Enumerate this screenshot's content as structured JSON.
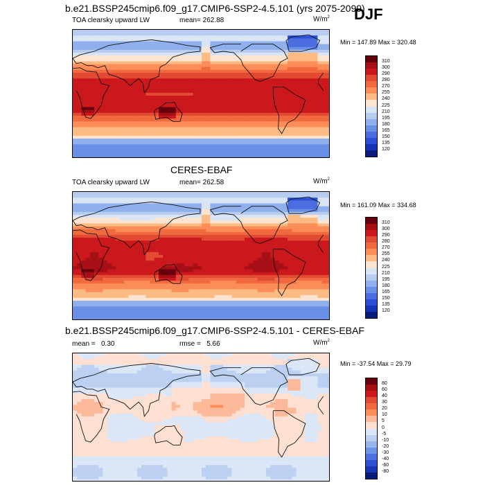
{
  "season": "DJF",
  "panels": [
    {
      "title": "b.e21.BSSP245cmip6.f09_g17.CMIP6-SSP2-4.5.101 (yrs 2075-2099)",
      "left_label": "TOA clearsky upward LW",
      "mean_label": "mean=",
      "mean_value": "262.88",
      "units": "W/m",
      "units_exp": "2",
      "minmax": "Min = 147.89 Max = 320.48",
      "colorbar_labels": [
        "310",
        "300",
        "290",
        "280",
        "270",
        "255",
        "240",
        "225",
        "210",
        "195",
        "180",
        "165",
        "150",
        "135",
        "120"
      ],
      "colorbar_colors": [
        "#67000d",
        "#a50f15",
        "#cb181d",
        "#e34a33",
        "#f16a3f",
        "#fc8d59",
        "#fdbb84",
        "#fde4d0",
        "#d9e4f5",
        "#b8ccf0",
        "#8fb0ec",
        "#6a8fe6",
        "#4a6ee0",
        "#2d4fd6",
        "#1633b8",
        "#0a1a7a"
      ],
      "field": "abs"
    },
    {
      "title": "CERES-EBAF",
      "left_label": "TOA clearsky upward LW",
      "mean_label": "mean=",
      "mean_value": "262.58",
      "units": "W/m",
      "units_exp": "2",
      "minmax": "Min = 161.09 Max = 334.68",
      "colorbar_labels": [
        "310",
        "300",
        "290",
        "280",
        "270",
        "255",
        "240",
        "225",
        "210",
        "195",
        "180",
        "165",
        "150",
        "135",
        "120"
      ],
      "colorbar_colors": [
        "#67000d",
        "#a50f15",
        "#cb181d",
        "#e34a33",
        "#f16a3f",
        "#fc8d59",
        "#fdbb84",
        "#fde4d0",
        "#d9e4f5",
        "#b8ccf0",
        "#8fb0ec",
        "#6a8fe6",
        "#4a6ee0",
        "#2d4fd6",
        "#1633b8",
        "#0a1a7a"
      ],
      "field": "abs"
    },
    {
      "title": "b.e21.BSSP245cmip6.f09_g17.CMIP6-SSP2-4.5.101 - CERES-EBAF",
      "mean_label": "mean =",
      "mean_value": "0.30",
      "rmse_label": "rmse =",
      "rmse_value": "5.66",
      "units": "W/m",
      "units_exp": "2",
      "minmax": "Min = -37.54 Max =  29.79",
      "colorbar_labels": [
        "80",
        "60",
        "40",
        "30",
        "20",
        "10",
        "5",
        "0",
        "-5",
        "-10",
        "-20",
        "-30",
        "-40",
        "-60",
        "-80"
      ],
      "colorbar_colors": [
        "#67000d",
        "#a50f15",
        "#cb181d",
        "#e34a33",
        "#f16a3f",
        "#fc8d59",
        "#fcb99a",
        "#fde0d2",
        "#dbe6f7",
        "#bcd0f2",
        "#97b5ec",
        "#6f93e5",
        "#4c70de",
        "#2e50d2",
        "#1a35b5",
        "#0a1a7a"
      ],
      "field": "diff"
    }
  ],
  "chart_data": [
    {
      "type": "heatmap",
      "title": "b.e21.BSSP245cmip6.f09_g17.CMIP6-SSP2-4.5.101 (yrs 2075-2099)",
      "variable": "TOA clearsky upward LW",
      "units": "W/m2",
      "mean": 262.88,
      "min": 147.89,
      "max": 320.48,
      "levels": [
        120,
        135,
        150,
        165,
        180,
        195,
        210,
        225,
        240,
        255,
        270,
        280,
        290,
        300,
        310
      ]
    },
    {
      "type": "heatmap",
      "title": "CERES-EBAF",
      "variable": "TOA clearsky upward LW",
      "units": "W/m2",
      "mean": 262.58,
      "min": 161.09,
      "max": 334.68,
      "levels": [
        120,
        135,
        150,
        165,
        180,
        195,
        210,
        225,
        240,
        255,
        270,
        280,
        290,
        300,
        310
      ]
    },
    {
      "type": "heatmap",
      "title": "b.e21.BSSP245cmip6.f09_g17.CMIP6-SSP2-4.5.101 - CERES-EBAF",
      "units": "W/m2",
      "mean": 0.3,
      "rmse": 5.66,
      "min": -37.54,
      "max": 29.79,
      "levels": [
        -80,
        -60,
        -40,
        -30,
        -20,
        -10,
        -5,
        0,
        5,
        10,
        20,
        30,
        40,
        60,
        80
      ]
    }
  ]
}
